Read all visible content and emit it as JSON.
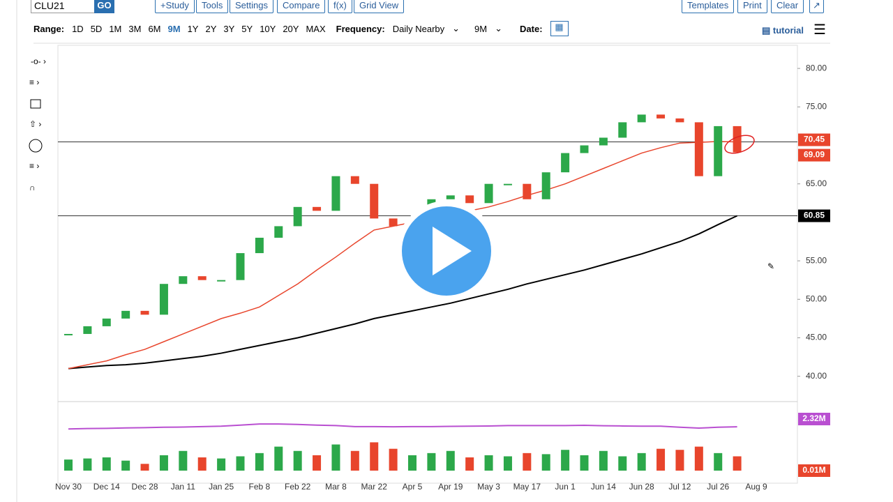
{
  "toolbar": {
    "symbol": "CLU21",
    "go": "GO",
    "buttons": [
      "+Study",
      "Tools",
      "Settings",
      "Compare",
      "f(x)",
      "Grid View"
    ],
    "right_buttons": [
      "Templates",
      "Print",
      "Clear"
    ]
  },
  "range_bar": {
    "range_label": "Range:",
    "options": [
      "1D",
      "5D",
      "1M",
      "3M",
      "6M",
      "9M",
      "1Y",
      "2Y",
      "3Y",
      "5Y",
      "10Y",
      "20Y",
      "MAX"
    ],
    "frequency_label": "Frequency:",
    "frequency": "Daily Nearby",
    "period": "9M",
    "date_label": "Date:",
    "tutorial": "tutorial"
  },
  "chart_data": {
    "type": "candlestick",
    "categories": [
      "Nov 30",
      null,
      "Dec 14",
      null,
      "Dec 28",
      null,
      "Jan 11",
      null,
      "Jan 25",
      null,
      "Feb 8",
      null,
      "Feb 22",
      null,
      "Mar 8",
      null,
      "Mar 22",
      null,
      "Apr 5",
      null,
      "Apr 19",
      null,
      "May 3",
      null,
      "May 17",
      null,
      "Jun 1",
      null,
      "Jun 14",
      null,
      "Jun 28",
      null,
      "Jul 12",
      null,
      "Jul 26",
      null,
      "Aug 9"
    ],
    "close": [
      45.5,
      46.5,
      47.5,
      48.5,
      48,
      52,
      53,
      52.5,
      52.5,
      56,
      58,
      59.5,
      62,
      61.5,
      66,
      65,
      60.5,
      59.5,
      59.5,
      63,
      63.5,
      62.5,
      65,
      65,
      63,
      66.5,
      69,
      70,
      71,
      73,
      74,
      73.5,
      73,
      66,
      72.5,
      69.09,
      null
    ],
    "ma50": [
      41,
      41.5,
      42,
      42.8,
      43.5,
      44.5,
      45.5,
      46.5,
      47.5,
      48.2,
      49,
      50.5,
      52,
      53.8,
      55.5,
      57.3,
      59,
      59.5,
      60,
      60.5,
      61,
      61.5,
      62,
      62.7,
      63.5,
      64.2,
      65,
      66,
      67,
      68,
      69,
      69.7,
      70.3,
      70.4,
      70.5,
      70.45,
      null
    ],
    "ma200": [
      41,
      41.2,
      41.4,
      41.5,
      41.7,
      42,
      42.3,
      42.6,
      43,
      43.5,
      44,
      44.5,
      45,
      45.6,
      46.2,
      46.8,
      47.5,
      48,
      48.5,
      49,
      49.5,
      50.1,
      50.7,
      51.3,
      52,
      52.6,
      53.2,
      53.8,
      54.5,
      55.2,
      55.9,
      56.7,
      57.5,
      58.5,
      59.7,
      60.85,
      null
    ],
    "volume": [
      0.8,
      0.85,
      0.9,
      0.75,
      0.6,
      1.0,
      1.2,
      0.9,
      0.85,
      0.95,
      1.1,
      1.4,
      1.2,
      1.0,
      1.5,
      1.2,
      1.6,
      1.3,
      1.0,
      1.1,
      1.2,
      0.9,
      1.0,
      0.95,
      1.1,
      1.05,
      1.25,
      1.0,
      1.2,
      0.95,
      1.1,
      1.3,
      1.25,
      1.4,
      1.1,
      0.95,
      null
    ],
    "volume_ma": [
      2.22,
      2.24,
      2.25,
      2.27,
      2.28,
      2.3,
      2.31,
      2.33,
      2.35,
      2.4,
      2.45,
      2.45,
      2.43,
      2.4,
      2.38,
      2.33,
      2.33,
      2.32,
      2.33,
      2.33,
      2.34,
      2.35,
      2.36,
      2.38,
      2.38,
      2.38,
      2.38,
      2.39,
      2.37,
      2.36,
      2.35,
      2.35,
      2.3,
      2.26,
      2.3,
      2.32,
      null
    ],
    "ylim": [
      36.8,
      83
    ],
    "yticks": [
      {
        "value": 40,
        "label": "40.00"
      },
      {
        "value": 45,
        "label": "45.00"
      },
      {
        "value": 50,
        "label": "50.00"
      },
      {
        "value": 55,
        "label": "55.00"
      },
      {
        "value": 65,
        "label": "65.00"
      },
      {
        "value": 75,
        "label": "75.00"
      },
      {
        "value": 80,
        "label": "80.00"
      }
    ],
    "markers": [
      {
        "value": 70.45,
        "label": "70.45",
        "color": "#e8452c"
      },
      {
        "value": 69.09,
        "label": "69.09",
        "color": "#e8452c"
      },
      {
        "value": 60.85,
        "label": "60.85",
        "color": "#000000"
      }
    ],
    "volume_ylim": [
      -0.2,
      3.2
    ],
    "volume_markers": [
      {
        "value": 2.32,
        "label": "2.32M",
        "color": "#b94fd1"
      },
      {
        "value": 0.01,
        "label": "0.01M",
        "color": "#e8452c"
      }
    ],
    "up_color": "#2ca84a",
    "down_color": "#e8452c",
    "ma50_color": "#e8452c",
    "ma200_color": "#000000",
    "volume_ma_color": "#b94fd1"
  }
}
